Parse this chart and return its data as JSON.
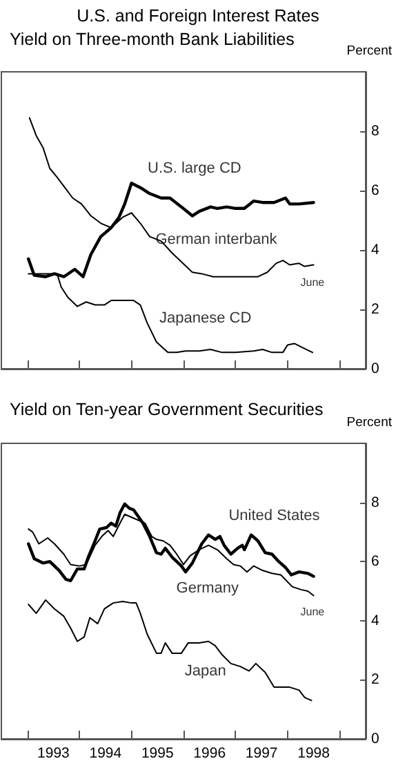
{
  "chart_data": [
    {
      "type": "line",
      "title": "U.S. and Foreign Interest Rates",
      "subtitle": "Yield on Three-month Bank Liabilities",
      "ylabel": "Percent",
      "xlim": [
        1992.5,
        1999.5
      ],
      "ylim": [
        0,
        10
      ],
      "yticks": [
        0,
        2,
        4,
        6,
        8
      ],
      "xticks": [
        {
          "value": 1993,
          "label": null
        },
        {
          "value": 1994,
          "label": null
        },
        {
          "value": 1995,
          "label": null
        },
        {
          "value": 1996,
          "label": null
        },
        {
          "value": 1997,
          "label": null
        },
        {
          "value": 1998,
          "label": null
        },
        {
          "value": 1999,
          "label": null
        }
      ],
      "tick_labels": "y",
      "grid": false,
      "legend": false,
      "marker": "none",
      "line_style": "solid",
      "series": [
        {
          "name": "U.S. large CD",
          "color": "#000000",
          "x": [
            1993.02,
            1993.13,
            1993.35,
            1993.52,
            1993.7,
            1993.91,
            1994.07,
            1994.22,
            1994.41,
            1994.61,
            1994.76,
            1994.87,
            1995.0,
            1995.17,
            1995.35,
            1995.57,
            1995.74,
            1995.96,
            1996.17,
            1996.3,
            1996.52,
            1996.65,
            1996.83,
            1997.0,
            1997.17,
            1997.35,
            1997.52,
            1997.74,
            1997.96,
            1998.04,
            1998.22,
            1998.5
          ],
          "values": [
            3.7,
            3.15,
            3.1,
            3.2,
            3.1,
            3.35,
            3.1,
            3.85,
            4.45,
            4.75,
            5.1,
            5.55,
            6.25,
            6.1,
            5.9,
            5.75,
            5.75,
            5.45,
            5.15,
            5.3,
            5.45,
            5.4,
            5.45,
            5.4,
            5.4,
            5.65,
            5.6,
            5.6,
            5.75,
            5.55,
            5.55,
            5.6
          ]
        },
        {
          "name": "German interbank",
          "color": "#000000",
          "x": [
            1993.04,
            1993.17,
            1993.3,
            1993.43,
            1993.57,
            1993.7,
            1993.87,
            1994.04,
            1994.22,
            1994.41,
            1994.61,
            1994.83,
            1995.0,
            1995.17,
            1995.35,
            1995.57,
            1995.78,
            1995.96,
            1996.17,
            1996.35,
            1996.57,
            1996.83,
            1997.04,
            1997.22,
            1997.43,
            1997.61,
            1997.78,
            1997.91,
            1998.04,
            1998.22,
            1998.32,
            1998.5
          ],
          "values": [
            8.45,
            7.85,
            7.45,
            6.75,
            6.45,
            6.15,
            5.75,
            5.55,
            5.15,
            4.9,
            4.75,
            5.1,
            5.25,
            4.9,
            4.45,
            4.3,
            3.9,
            3.6,
            3.25,
            3.2,
            3.1,
            3.1,
            3.1,
            3.1,
            3.1,
            3.25,
            3.55,
            3.65,
            3.5,
            3.55,
            3.45,
            3.5
          ]
        },
        {
          "name": "Japanese CD",
          "color": "#000000",
          "x": [
            1993.02,
            1993.35,
            1993.57,
            1993.65,
            1993.78,
            1993.96,
            1994.13,
            1994.3,
            1994.48,
            1994.61,
            1994.83,
            1995.04,
            1995.17,
            1995.3,
            1995.48,
            1995.7,
            1995.87,
            1996.04,
            1996.3,
            1996.52,
            1996.74,
            1997.0,
            1997.35,
            1997.52,
            1997.7,
            1997.91,
            1998.0,
            1998.13,
            1998.3,
            1998.48
          ],
          "values": [
            3.2,
            3.2,
            3.2,
            2.75,
            2.4,
            2.1,
            2.25,
            2.15,
            2.15,
            2.3,
            2.3,
            2.3,
            2.15,
            1.55,
            0.9,
            0.55,
            0.55,
            0.6,
            0.6,
            0.65,
            0.55,
            0.55,
            0.6,
            0.65,
            0.55,
            0.55,
            0.8,
            0.85,
            0.7,
            0.55
          ]
        }
      ],
      "annotations": [
        "June"
      ]
    },
    {
      "type": "line",
      "title": "Yield on Ten-year Government Securities",
      "ylabel": "Percent",
      "xlim": [
        1992.5,
        1999.5
      ],
      "ylim": [
        0,
        10
      ],
      "yticks": [
        0,
        2,
        4,
        6,
        8
      ],
      "xticks": [
        {
          "value": 1993,
          "label": null
        },
        {
          "value": 1994,
          "label": null
        },
        {
          "value": 1995,
          "label": null
        },
        {
          "value": 1996,
          "label": null
        },
        {
          "value": 1997,
          "label": null
        },
        {
          "value": 1998,
          "label": null
        },
        {
          "value": 1999,
          "label": null
        },
        {
          "value": 1993.5,
          "label": "1993"
        },
        {
          "value": 1994.5,
          "label": "1994"
        },
        {
          "value": 1995.5,
          "label": "1995"
        },
        {
          "value": 1996.5,
          "label": "1996"
        },
        {
          "value": 1997.5,
          "label": "1997"
        },
        {
          "value": 1998.5,
          "label": "1998"
        }
      ],
      "grid": false,
      "legend": false,
      "marker": "none",
      "line_style": "solid",
      "series": [
        {
          "name": "United States",
          "color": "#000000",
          "x": [
            1993.02,
            1993.13,
            1993.3,
            1993.43,
            1993.61,
            1993.74,
            1993.83,
            1993.96,
            1994.09,
            1994.17,
            1994.3,
            1994.39,
            1994.52,
            1994.61,
            1994.7,
            1994.78,
            1994.87,
            1994.96,
            1995.04,
            1995.22,
            1995.35,
            1995.48,
            1995.57,
            1995.65,
            1995.78,
            1995.96,
            1996.04,
            1996.17,
            1996.35,
            1996.48,
            1996.61,
            1996.7,
            1996.78,
            1996.91,
            1997.04,
            1997.13,
            1997.17,
            1997.3,
            1997.43,
            1997.57,
            1997.7,
            1997.83,
            1997.96,
            1998.07,
            1998.22,
            1998.39,
            1998.5
          ],
          "values": [
            6.6,
            6.1,
            5.95,
            6.0,
            5.7,
            5.4,
            5.35,
            5.75,
            5.75,
            6.15,
            6.7,
            7.1,
            7.15,
            7.3,
            7.2,
            7.65,
            7.95,
            7.8,
            7.75,
            7.3,
            6.85,
            6.3,
            6.25,
            6.45,
            6.15,
            5.85,
            5.65,
            5.95,
            6.6,
            6.9,
            6.75,
            6.85,
            6.55,
            6.25,
            6.45,
            6.55,
            6.4,
            6.9,
            6.7,
            6.3,
            6.25,
            6.0,
            5.8,
            5.55,
            5.65,
            5.6,
            5.5
          ]
        },
        {
          "name": "Germany",
          "color": "#000000",
          "x": [
            1993.02,
            1993.1,
            1993.22,
            1993.39,
            1993.52,
            1993.7,
            1993.83,
            1994.0,
            1994.13,
            1994.3,
            1994.43,
            1994.55,
            1994.65,
            1994.78,
            1994.87,
            1995.0,
            1995.13,
            1995.26,
            1995.39,
            1995.48,
            1995.61,
            1995.74,
            1995.87,
            1996.0,
            1996.13,
            1996.3,
            1996.48,
            1996.65,
            1996.83,
            1996.96,
            1997.09,
            1997.22,
            1997.35,
            1997.52,
            1997.7,
            1997.87,
            1998.09,
            1998.26,
            1998.39,
            1998.5
          ],
          "values": [
            7.1,
            7.0,
            6.6,
            6.8,
            6.6,
            6.25,
            5.9,
            5.85,
            5.9,
            6.55,
            6.85,
            7.05,
            6.85,
            7.3,
            7.6,
            7.5,
            7.4,
            7.3,
            6.85,
            6.75,
            6.7,
            6.55,
            6.25,
            5.9,
            6.2,
            6.4,
            6.55,
            6.4,
            6.1,
            5.9,
            5.85,
            5.65,
            5.85,
            5.7,
            5.6,
            5.55,
            5.15,
            5.05,
            5.0,
            4.85
          ]
        },
        {
          "name": "Japan",
          "color": "#000000",
          "x": [
            1993.02,
            1993.17,
            1993.35,
            1993.52,
            1993.7,
            1993.83,
            1993.96,
            1994.09,
            1994.2,
            1994.35,
            1994.48,
            1994.65,
            1994.83,
            1995.0,
            1995.09,
            1995.17,
            1995.3,
            1995.48,
            1995.57,
            1995.65,
            1995.78,
            1995.96,
            1996.09,
            1996.3,
            1996.48,
            1996.61,
            1996.74,
            1996.91,
            1997.09,
            1997.26,
            1997.39,
            1997.57,
            1997.74,
            1997.87,
            1998.04,
            1998.22,
            1998.33,
            1998.46
          ],
          "values": [
            4.55,
            4.25,
            4.7,
            4.4,
            4.15,
            3.75,
            3.3,
            3.45,
            4.1,
            3.9,
            4.4,
            4.6,
            4.65,
            4.6,
            4.6,
            4.25,
            3.55,
            2.9,
            2.9,
            3.25,
            2.9,
            2.9,
            3.25,
            3.25,
            3.3,
            3.15,
            2.85,
            2.55,
            2.45,
            2.3,
            2.55,
            2.25,
            1.75,
            1.75,
            1.75,
            1.65,
            1.4,
            1.3
          ]
        }
      ],
      "annotations": [
        "June"
      ]
    }
  ]
}
